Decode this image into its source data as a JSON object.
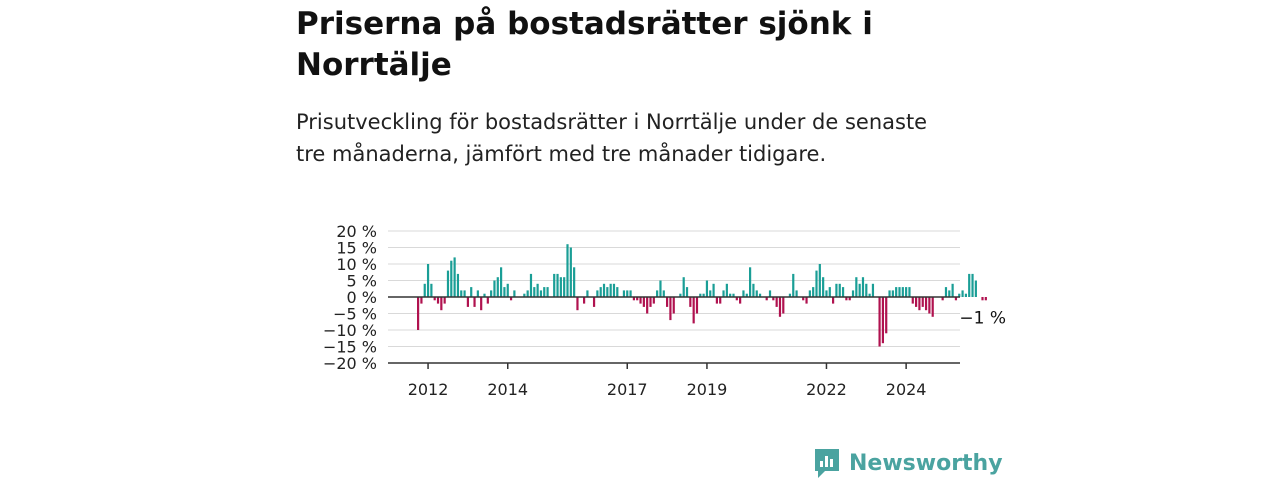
{
  "header": {
    "title": "Priserna på bostadsrätter sjönk i Norrtälje",
    "subtitle": "Prisutveckling för bostadsrätter i Norrtälje under de senaste tre månaderna, jämfört med tre månader tidigare."
  },
  "brand": {
    "name": "Newsworthy",
    "color": "#4aa3a0",
    "icon": "newsworthy-logo-icon"
  },
  "colors": {
    "positive": "#1a9e96",
    "negative": "#b0124f",
    "grid": "#d9d9d9",
    "axis": "#333333"
  },
  "chart_data": {
    "type": "bar",
    "ylim": [
      -20,
      20
    ],
    "y_ticks": [
      20,
      15,
      10,
      5,
      0,
      -5,
      -10,
      -15,
      -20
    ],
    "y_tick_labels": [
      "20 %",
      "15 %",
      "10 %",
      "5 %",
      "0 %",
      "−5 %",
      "−10 %",
      "−15 %",
      "−20 %"
    ],
    "x_tick_labels": [
      "2012",
      "2014",
      "2017",
      "2019",
      "2022",
      "2024"
    ],
    "x_tick_positions": [
      "2012-01",
      "2014-01",
      "2017-01",
      "2019-01",
      "2022-01",
      "2024-01"
    ],
    "start_period": "2011-10",
    "grid": true,
    "last_value_label": "−1 %",
    "values": [
      -10,
      -2,
      4,
      10,
      4,
      -1,
      -2,
      -4,
      -2,
      8,
      11,
      12,
      7,
      2,
      2,
      -3,
      3,
      -3,
      2,
      -4,
      1,
      -2,
      2,
      5,
      6,
      9,
      3,
      4,
      -1,
      2,
      0,
      0,
      1,
      2,
      7,
      3,
      4,
      2,
      3,
      3,
      0,
      7,
      7,
      6,
      6,
      16,
      15,
      9,
      -4,
      0,
      -2,
      2,
      0,
      -3,
      2,
      3,
      4,
      3,
      4,
      4,
      3,
      0,
      2,
      2,
      2,
      -1,
      -1,
      -2,
      -3,
      -5,
      -3,
      -2,
      2,
      5,
      2,
      -3,
      -7,
      -5,
      0,
      1,
      6,
      3,
      -3,
      -8,
      -5,
      1,
      1,
      5,
      2,
      4,
      -2,
      -2,
      2,
      4,
      1,
      1,
      -1,
      -2,
      2,
      1,
      9,
      4,
      2,
      1,
      0,
      -1,
      2,
      -1,
      -3,
      -6,
      -5,
      0,
      1,
      7,
      2,
      0,
      -1,
      -2,
      2,
      3,
      8,
      10,
      6,
      2,
      3,
      -2,
      4,
      4,
      3,
      -1,
      -1,
      2,
      6,
      4,
      6,
      4,
      1,
      4,
      0,
      -15,
      -14,
      -11,
      2,
      2,
      3,
      3,
      3,
      3,
      3,
      -2,
      -3,
      -4,
      -3,
      -4,
      -5,
      -6,
      0,
      0,
      -1,
      3,
      2,
      4,
      -1,
      1,
      2,
      1,
      7,
      7,
      5,
      0,
      -1,
      -1
    ]
  }
}
